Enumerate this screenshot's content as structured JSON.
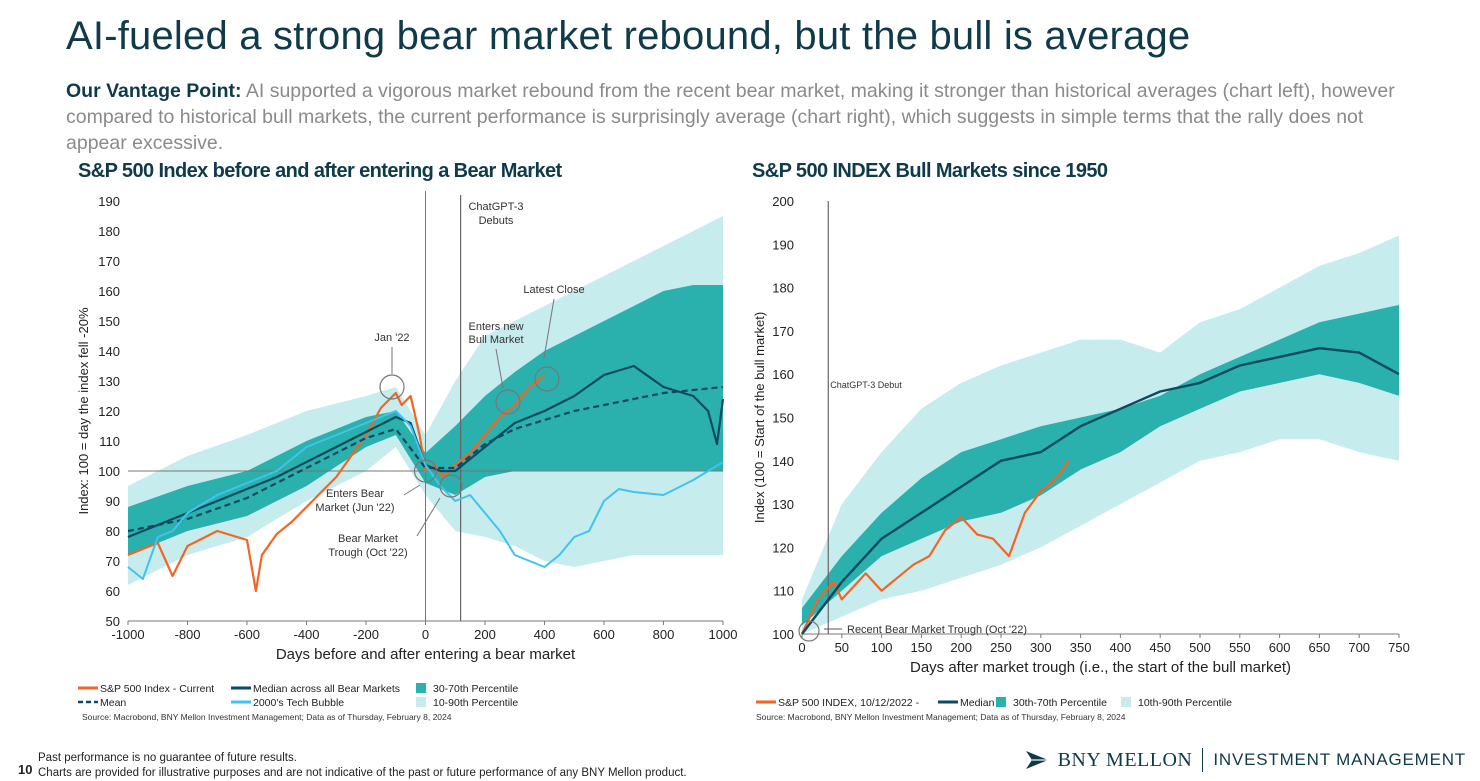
{
  "page": {
    "title": "AI-fueled a strong bear market rebound, but the bull is average",
    "vantage_label": "Our Vantage Point:",
    "vantage_text": " AI supported a vigorous market rebound from the recent bear market, making it stronger than historical averages (chart left), however compared to historical bull markets, the current performance is surprisingly average (chart right), which suggests in simple terms that the rally does not appear excessive.",
    "page_number": "10",
    "disclaimer_1": "Past performance is no guarantee of future results.",
    "disclaimer_2": "Charts are provided for illustrative purposes and are not indicative of the past or future performance of any BNY Mellon product.",
    "logo_brand": "BNY MELLON",
    "logo_sub": "INVESTMENT MANAGEMENT"
  },
  "colors": {
    "navy": "#0f3a4a",
    "orange": "#f26522",
    "dark_series": "#0d4a60",
    "teal_band": "#2ab0ad",
    "light_band": "#c6ecee",
    "cyan_series": "#3fc3f0",
    "grey_axis": "#7a7a7a"
  },
  "chart_data": [
    {
      "id": "left",
      "type": "line",
      "title": "S&P 500 Index before and after entering a Bear Market",
      "xlabel": "Days before and after entering a bear market",
      "ylabel": "Index: 100 = day the index fell -20%",
      "xlim": [
        -1000,
        1000
      ],
      "ylim": [
        50,
        190
      ],
      "xticks": [
        -1000,
        -800,
        -600,
        -400,
        -200,
        0,
        200,
        400,
        600,
        800,
        1000
      ],
      "yticks": [
        50,
        60,
        70,
        80,
        90,
        100,
        110,
        120,
        130,
        140,
        150,
        160,
        170,
        180,
        190
      ],
      "bands": [
        {
          "name": "10-90th Percentile",
          "x": [
            -1000,
            -800,
            -600,
            -400,
            -200,
            -100,
            0,
            100,
            200,
            300,
            400,
            500,
            600,
            700,
            800,
            900,
            1000
          ],
          "low": [
            62,
            72,
            78,
            90,
            100,
            108,
            92,
            80,
            78,
            75,
            70,
            68,
            70,
            72,
            72,
            72,
            72
          ],
          "high": [
            95,
            105,
            112,
            120,
            125,
            128,
            112,
            130,
            145,
            150,
            155,
            160,
            165,
            170,
            175,
            180,
            185
          ]
        },
        {
          "name": "30-70th Percentile",
          "x": [
            -1000,
            -800,
            -600,
            -400,
            -200,
            -100,
            0,
            100,
            200,
            300,
            400,
            500,
            600,
            700,
            800,
            900,
            1000
          ],
          "low": [
            72,
            80,
            85,
            95,
            108,
            112,
            96,
            92,
            98,
            100,
            100,
            100,
            100,
            100,
            100,
            100,
            100
          ],
          "high": [
            88,
            95,
            100,
            110,
            118,
            120,
            106,
            115,
            125,
            133,
            140,
            145,
            150,
            155,
            160,
            162,
            162
          ]
        }
      ],
      "series": [
        {
          "name": "S&P 500 Index - Current",
          "style": "solid",
          "x": [
            -1000,
            -900,
            -850,
            -800,
            -700,
            -600,
            -570,
            -550,
            -500,
            -450,
            -400,
            -300,
            -200,
            -150,
            -100,
            -80,
            -50,
            -20,
            0,
            30,
            60,
            100,
            150,
            200,
            250,
            300,
            350,
            400
          ],
          "y": [
            72,
            76,
            65,
            75,
            80,
            77,
            60,
            72,
            79,
            83,
            88,
            98,
            112,
            121,
            126,
            122,
            125,
            112,
            100,
            102,
            98,
            102,
            106,
            112,
            118,
            122,
            128,
            132
          ]
        },
        {
          "name": "Median across all Bear Markets",
          "style": "solid",
          "x": [
            -1000,
            -900,
            -800,
            -700,
            -600,
            -500,
            -400,
            -300,
            -200,
            -100,
            -50,
            0,
            50,
            100,
            150,
            200,
            250,
            300,
            350,
            400,
            500,
            600,
            700,
            800,
            900,
            950,
            980,
            1000
          ],
          "y": [
            78,
            82,
            86,
            90,
            94,
            98,
            103,
            108,
            113,
            118,
            116,
            102,
            100,
            100,
            104,
            108,
            112,
            116,
            118,
            120,
            125,
            132,
            135,
            128,
            125,
            120,
            109,
            124
          ]
        },
        {
          "name": "Mean",
          "style": "dashed",
          "x": [
            -1000,
            -800,
            -600,
            -400,
            -200,
            -100,
            0,
            100,
            200,
            300,
            400,
            500,
            600,
            700,
            800,
            900,
            1000
          ],
          "y": [
            80,
            84,
            91,
            101,
            111,
            114,
            101,
            101,
            109,
            114,
            117,
            120,
            122,
            124,
            126,
            127,
            128
          ]
        },
        {
          "name": "2000's Tech Bubble",
          "style": "solid",
          "x": [
            -1000,
            -950,
            -900,
            -850,
            -800,
            -700,
            -600,
            -500,
            -400,
            -300,
            -200,
            -100,
            -50,
            0,
            50,
            100,
            150,
            200,
            250,
            300,
            350,
            400,
            450,
            500,
            550,
            600,
            650,
            700,
            800,
            900,
            1000
          ],
          "y": [
            68,
            64,
            78,
            80,
            86,
            92,
            96,
            100,
            108,
            112,
            116,
            120,
            115,
            102,
            95,
            90,
            92,
            86,
            80,
            72,
            70,
            68,
            72,
            78,
            80,
            90,
            94,
            93,
            92,
            97,
            103
          ]
        }
      ],
      "legend": [
        "S&P 500 Index - Current",
        "Median across all Bear Markets",
        "30-70th Percentile",
        "Mean",
        "2000's Tech Bubble",
        "10-90th Percentile"
      ],
      "annotations": [
        {
          "text": "ChatGPT-3",
          "text2": "Debuts",
          "x": 118
        },
        {
          "text": "Latest Close"
        },
        {
          "text": "Enters new",
          "text2": "Bull Market"
        },
        {
          "text": "Jan '22"
        },
        {
          "text": "Enters Bear",
          "text2": "Market (Jun '22)"
        },
        {
          "text": "Bear Market",
          "text2": "Trough (Oct '22)"
        }
      ],
      "source": "Source: Macrobond, BNY Mellon Investment Management; Data as of Thursday, February 8, 2024"
    },
    {
      "id": "right",
      "type": "line",
      "title": "S&P 500 INDEX Bull Markets since 1950",
      "xlabel": "Days after market trough (i.e., the start of the bull market)",
      "ylabel": "Index (100 = Start of the bull market)",
      "xlim": [
        0,
        750
      ],
      "ylim": [
        100,
        200
      ],
      "xticks": [
        0,
        50,
        100,
        150,
        200,
        250,
        300,
        350,
        400,
        450,
        500,
        550,
        600,
        650,
        700,
        750
      ],
      "yticks": [
        100,
        110,
        120,
        130,
        140,
        150,
        160,
        170,
        180,
        190,
        200
      ],
      "bands": [
        {
          "name": "10th-90th Percentile",
          "x": [
            0,
            50,
            100,
            150,
            200,
            250,
            300,
            350,
            400,
            450,
            500,
            550,
            600,
            650,
            700,
            750
          ],
          "low": [
            100,
            104,
            108,
            110,
            113,
            116,
            120,
            125,
            130,
            135,
            140,
            142,
            145,
            145,
            142,
            140
          ],
          "high": [
            108,
            130,
            142,
            152,
            158,
            162,
            165,
            168,
            168,
            165,
            172,
            175,
            180,
            185,
            188,
            192
          ]
        },
        {
          "name": "30th-70th Percentile",
          "x": [
            0,
            50,
            100,
            150,
            200,
            250,
            300,
            350,
            400,
            450,
            500,
            550,
            600,
            650,
            700,
            750
          ],
          "low": [
            102,
            110,
            118,
            122,
            126,
            128,
            132,
            138,
            142,
            148,
            152,
            156,
            158,
            160,
            158,
            155
          ],
          "high": [
            106,
            118,
            128,
            136,
            142,
            145,
            148,
            150,
            152,
            155,
            160,
            164,
            168,
            172,
            174,
            176
          ]
        }
      ],
      "series": [
        {
          "name": "S&P 500 INDEX, 10/12/2022 -",
          "style": "solid",
          "x": [
            0,
            20,
            40,
            50,
            60,
            80,
            100,
            120,
            140,
            160,
            180,
            200,
            220,
            240,
            260,
            280,
            300,
            320,
            335
          ],
          "y": [
            100,
            108,
            112,
            108,
            110,
            114,
            110,
            113,
            116,
            118,
            124,
            127,
            123,
            122,
            118,
            128,
            133,
            136,
            140
          ]
        },
        {
          "name": "Median",
          "style": "solid",
          "x": [
            0,
            50,
            100,
            150,
            200,
            250,
            300,
            350,
            400,
            450,
            500,
            550,
            600,
            650,
            700,
            750
          ],
          "y": [
            100,
            112,
            122,
            128,
            134,
            140,
            142,
            148,
            152,
            156,
            158,
            162,
            164,
            166,
            165,
            160
          ]
        }
      ],
      "legend": [
        "S&P 500 INDEX, 10/12/2022 -",
        "Median",
        "30th-70th Percentile",
        "10th-90th Percentile"
      ],
      "annotations": [
        {
          "text": "ChatGPT-3 Debut",
          "x": 33
        },
        {
          "text": "Recent Bear Market Trough (Oct '22)"
        }
      ],
      "source": "Source: Macrobond, BNY Mellon Investment Management; Data as of Thursday, February 8, 2024"
    }
  ]
}
